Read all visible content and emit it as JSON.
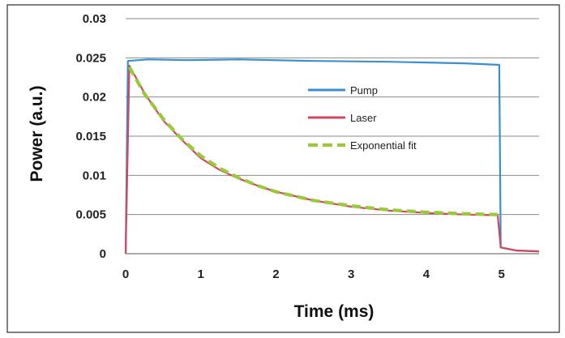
{
  "chart_data": {
    "type": "line",
    "xlabel": "Time (ms)",
    "ylabel": "Power  (a.u.)",
    "xlim": [
      0,
      5.5
    ],
    "ylim": [
      0,
      0.03
    ],
    "x_ticks": [
      "0",
      "1",
      "2",
      "3",
      "4",
      "5"
    ],
    "y_ticks": [
      "0",
      "0.005",
      "0.01",
      "0.015",
      "0.02",
      "0.025",
      "0.03"
    ],
    "grid": true,
    "legend_position": "center-right",
    "series": [
      {
        "name": "Pump",
        "color": "#3a8fd0",
        "points": [
          [
            0.0,
            0.0
          ],
          [
            0.03,
            0.0246
          ],
          [
            0.3,
            0.0248
          ],
          [
            0.8,
            0.0247
          ],
          [
            1.5,
            0.0248
          ],
          [
            2.5,
            0.0246
          ],
          [
            3.5,
            0.0245
          ],
          [
            4.5,
            0.0243
          ],
          [
            4.97,
            0.0241
          ],
          [
            4.99,
            0.0008
          ],
          [
            5.2,
            0.0004
          ],
          [
            5.5,
            0.0003
          ]
        ]
      },
      {
        "name": "Laser",
        "color": "#d2475f",
        "points": [
          [
            0.0,
            0.0
          ],
          [
            0.05,
            0.024
          ],
          [
            0.25,
            0.0205
          ],
          [
            0.5,
            0.017
          ],
          [
            0.75,
            0.0145
          ],
          [
            1.0,
            0.0122
          ],
          [
            1.25,
            0.0107
          ],
          [
            1.5,
            0.0096
          ],
          [
            1.75,
            0.0087
          ],
          [
            2.0,
            0.0079
          ],
          [
            2.5,
            0.0068
          ],
          [
            3.0,
            0.006
          ],
          [
            3.5,
            0.0055
          ],
          [
            4.0,
            0.0052
          ],
          [
            4.5,
            0.005
          ],
          [
            4.95,
            0.0049
          ],
          [
            4.99,
            0.0008
          ],
          [
            5.2,
            0.0004
          ],
          [
            5.5,
            0.0003
          ]
        ]
      },
      {
        "name": "Exponential fit",
        "color": "#9cc93c",
        "points": [
          [
            0.05,
            0.0238
          ],
          [
            0.25,
            0.0204
          ],
          [
            0.5,
            0.0172
          ],
          [
            0.75,
            0.0146
          ],
          [
            1.0,
            0.0125
          ],
          [
            1.25,
            0.0109
          ],
          [
            1.5,
            0.0097
          ],
          [
            1.75,
            0.0087
          ],
          [
            2.0,
            0.0079
          ],
          [
            2.5,
            0.0068
          ],
          [
            3.0,
            0.0061
          ],
          [
            3.5,
            0.0056
          ],
          [
            4.0,
            0.0053
          ],
          [
            4.5,
            0.0051
          ],
          [
            4.95,
            0.005
          ]
        ]
      }
    ]
  }
}
